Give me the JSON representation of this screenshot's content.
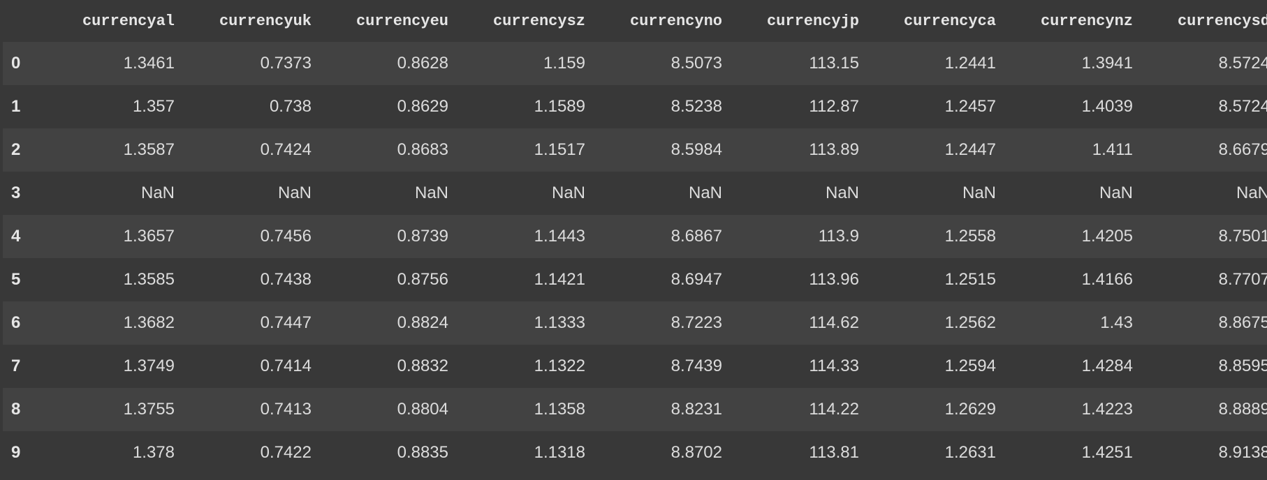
{
  "columns": [
    "currencyal",
    "currencyuk",
    "currencyeu",
    "currencysz",
    "currencyno",
    "currencyjp",
    "currencyca",
    "currencynz",
    "currencysd"
  ],
  "rows": [
    {
      "index": "0",
      "values": [
        "1.3461",
        "0.7373",
        "0.8628",
        "1.159",
        "8.5073",
        "113.15",
        "1.2441",
        "1.3941",
        "8.5724"
      ]
    },
    {
      "index": "1",
      "values": [
        "1.357",
        "0.738",
        "0.8629",
        "1.1589",
        "8.5238",
        "112.87",
        "1.2457",
        "1.4039",
        "8.5724"
      ]
    },
    {
      "index": "2",
      "values": [
        "1.3587",
        "0.7424",
        "0.8683",
        "1.1517",
        "8.5984",
        "113.89",
        "1.2447",
        "1.411",
        "8.6679"
      ]
    },
    {
      "index": "3",
      "values": [
        "NaN",
        "NaN",
        "NaN",
        "NaN",
        "NaN",
        "NaN",
        "NaN",
        "NaN",
        "NaN"
      ]
    },
    {
      "index": "4",
      "values": [
        "1.3657",
        "0.7456",
        "0.8739",
        "1.1443",
        "8.6867",
        "113.9",
        "1.2558",
        "1.4205",
        "8.7501"
      ]
    },
    {
      "index": "5",
      "values": [
        "1.3585",
        "0.7438",
        "0.8756",
        "1.1421",
        "8.6947",
        "113.96",
        "1.2515",
        "1.4166",
        "8.7707"
      ]
    },
    {
      "index": "6",
      "values": [
        "1.3682",
        "0.7447",
        "0.8824",
        "1.1333",
        "8.7223",
        "114.62",
        "1.2562",
        "1.43",
        "8.8675"
      ]
    },
    {
      "index": "7",
      "values": [
        "1.3749",
        "0.7414",
        "0.8832",
        "1.1322",
        "8.7439",
        "114.33",
        "1.2594",
        "1.4284",
        "8.8595"
      ]
    },
    {
      "index": "8",
      "values": [
        "1.3755",
        "0.7413",
        "0.8804",
        "1.1358",
        "8.8231",
        "114.22",
        "1.2629",
        "1.4223",
        "8.8889"
      ]
    },
    {
      "index": "9",
      "values": [
        "1.378",
        "0.7422",
        "0.8835",
        "1.1318",
        "8.8702",
        "113.81",
        "1.2631",
        "1.4251",
        "8.9138"
      ]
    }
  ],
  "colors": {
    "background": "#383838",
    "row_stripe": "#424242",
    "text": "#dcdcdc",
    "header_text": "#e6e6e6"
  }
}
